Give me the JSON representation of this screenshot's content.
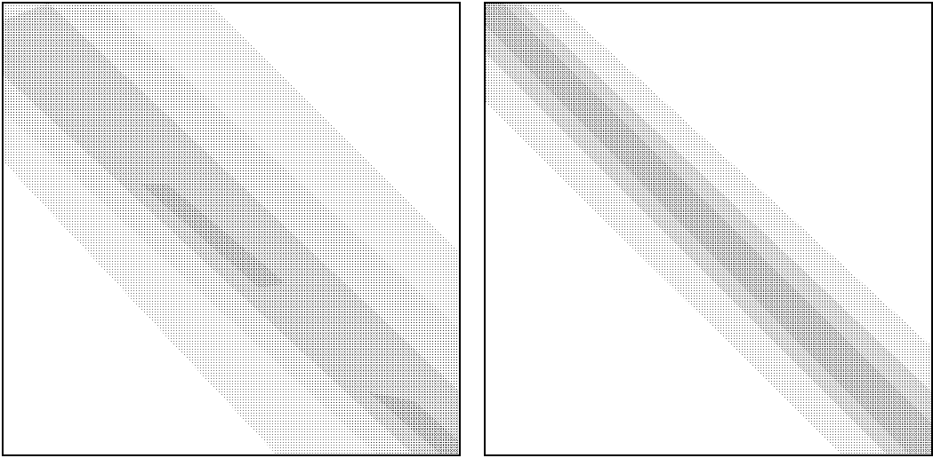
{
  "chart_data": [
    {
      "type": "spy"
    },
    {
      "type": "spy"
    }
  ]
}
